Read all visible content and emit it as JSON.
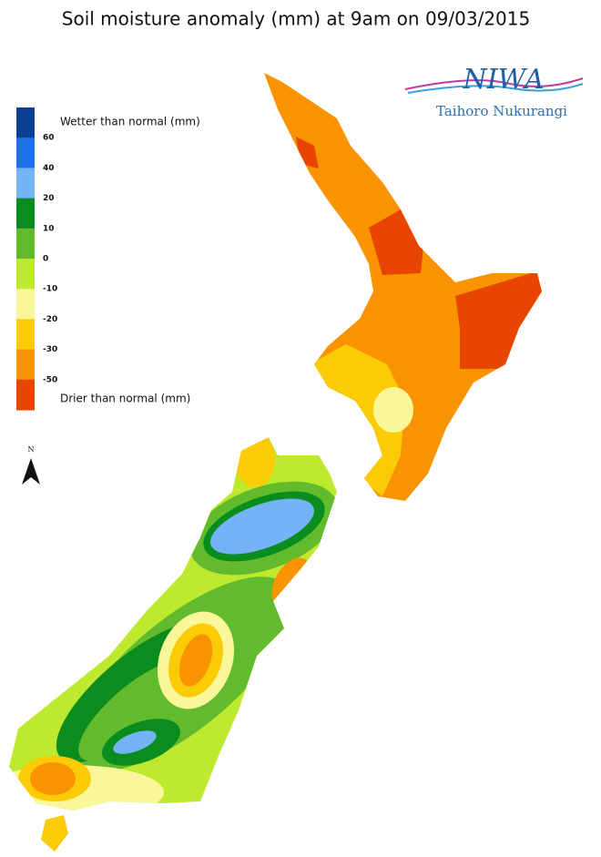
{
  "title": "Soil moisture anomaly (mm) at 9am on 09/03/2015",
  "logo": {
    "name": "NIWA",
    "tagline": "Taihoro Nukurangi"
  },
  "legend": {
    "wetter_label": "Wetter than normal (mm)",
    "drier_label": "Drier than normal (mm)",
    "ticks": [
      60,
      40,
      20,
      10,
      0,
      -10,
      -20,
      -30,
      -50
    ],
    "colors": [
      "#0b3f94",
      "#1c72e8",
      "#74b4f6",
      "#0b8c1e",
      "#62bb2c",
      "#bde92e",
      "#f9f79a",
      "#fbcb05",
      "#f99400",
      "#e84500"
    ]
  },
  "compass": "N"
}
